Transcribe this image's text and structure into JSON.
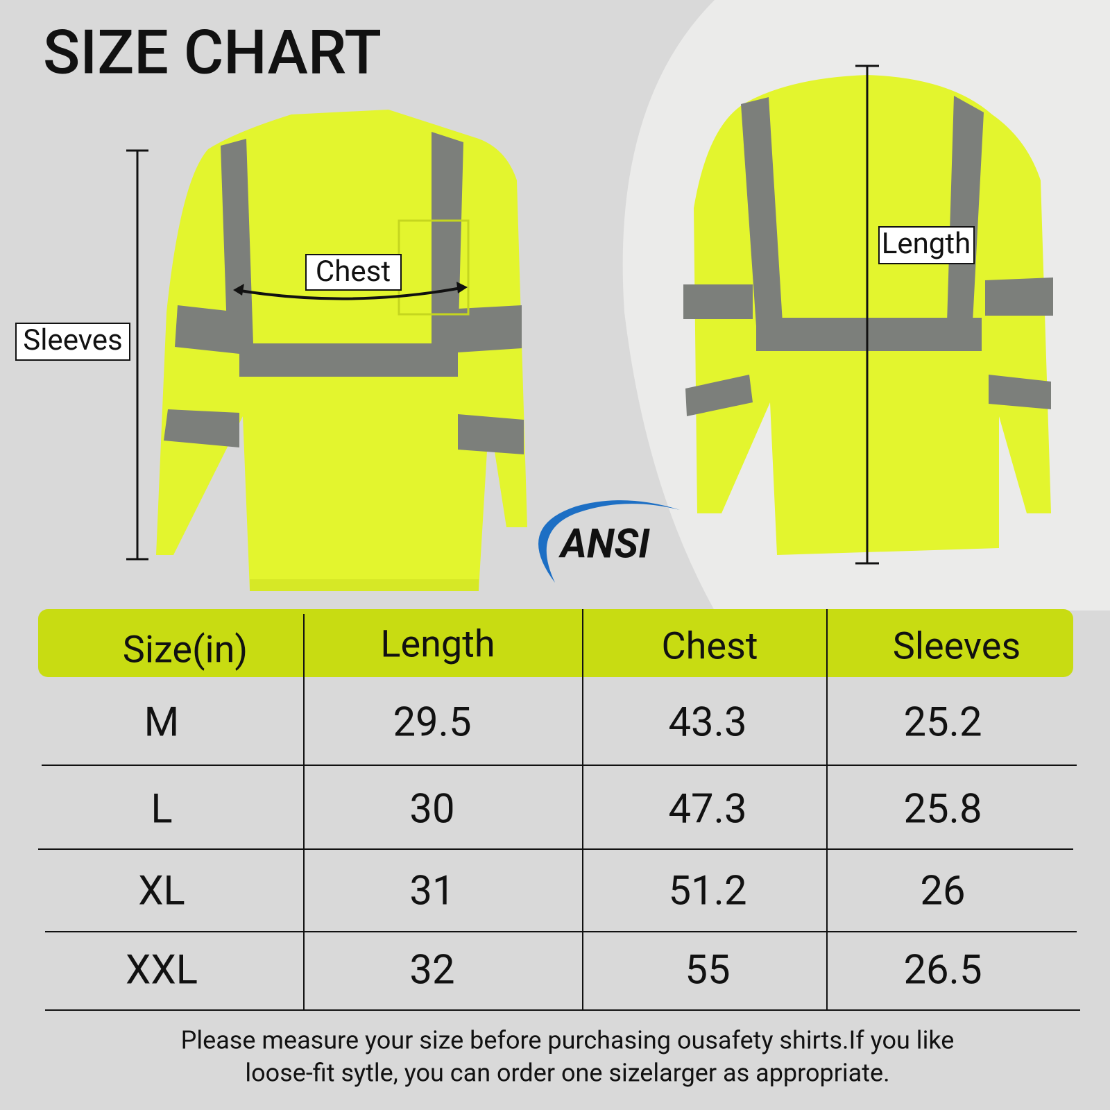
{
  "header": {
    "title": "SIZE CHART"
  },
  "labels": {
    "chest": "Chest",
    "sleeves": "Sleeves",
    "length": "Length",
    "logo": "ANSI"
  },
  "table": {
    "header": [
      "Size(in)",
      "Length",
      "Chest",
      "Sleeves"
    ],
    "rows": [
      [
        "M",
        "29.5",
        "43.3",
        "25.2"
      ],
      [
        "L",
        "30",
        "47.3",
        "25.8"
      ],
      [
        "XL",
        "31",
        "51.2",
        "26"
      ],
      [
        "XXL",
        "32",
        "55",
        "26.5"
      ]
    ]
  },
  "note": [
    "Please measure your size before purchasing ousafety shirts.If you like",
    "loose-fit sytle, you can order one sizelarger as appropriate."
  ]
}
